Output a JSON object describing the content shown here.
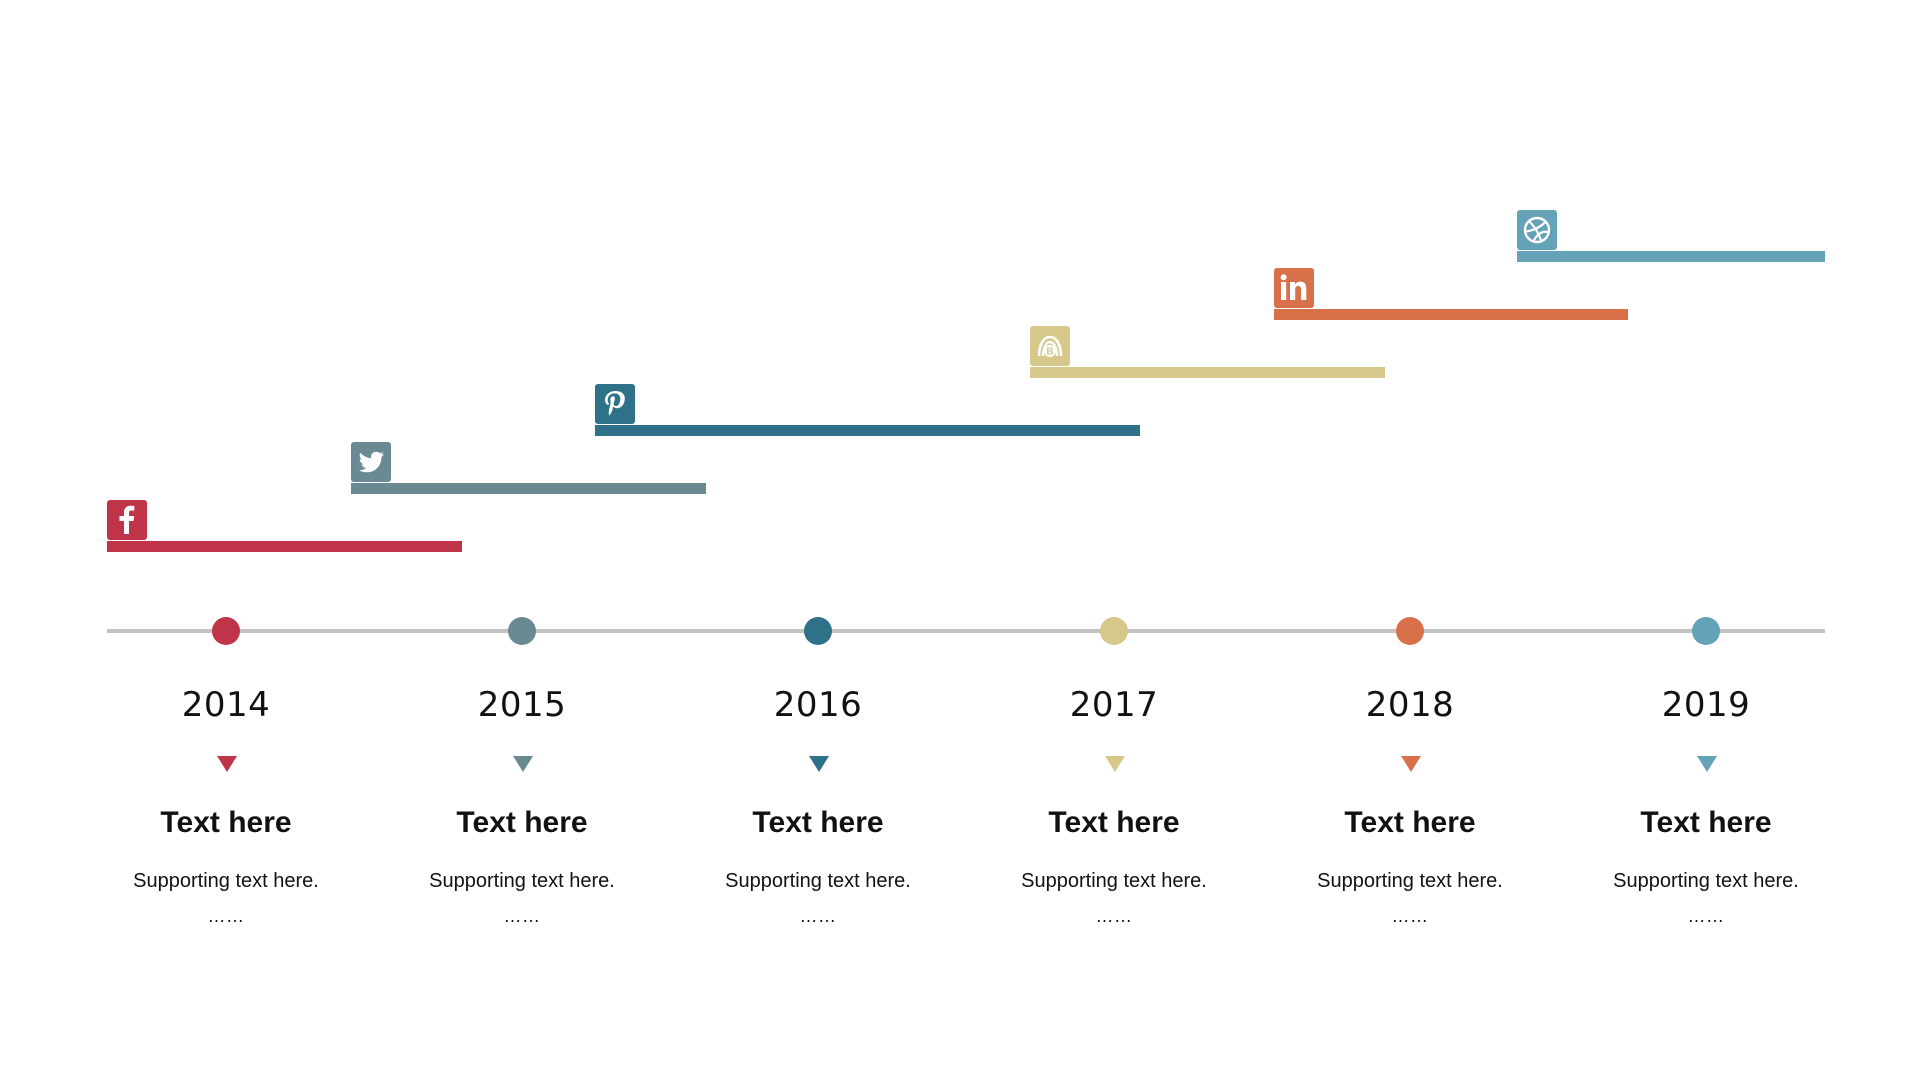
{
  "timeline": {
    "milestones": [
      {
        "year": "2014",
        "heading": "Text here",
        "support": "Supporting text here.",
        "dots": "……",
        "color": "#c0344a",
        "icon": "facebook-icon"
      },
      {
        "year": "2015",
        "heading": "Text here",
        "support": "Supporting text here.",
        "dots": "……",
        "color": "#6a8a93",
        "icon": "twitter-icon"
      },
      {
        "year": "2016",
        "heading": "Text here",
        "support": "Supporting text here.",
        "dots": "……",
        "color": "#2e7188",
        "icon": "pinterest-icon"
      },
      {
        "year": "2017",
        "heading": "Text here",
        "support": "Supporting text here.",
        "dots": "……",
        "color": "#d6c88a",
        "icon": "blogger-icon"
      },
      {
        "year": "2018",
        "heading": "Text here",
        "support": "Supporting text here.",
        "dots": "……",
        "color": "#d8714a",
        "icon": "linkedin-icon"
      },
      {
        "year": "2019",
        "heading": "Text here",
        "support": "Supporting text here.",
        "dots": "……",
        "color": "#64a2b8",
        "icon": "dribbble-icon"
      }
    ],
    "axis_color": "#c3c3c3"
  }
}
